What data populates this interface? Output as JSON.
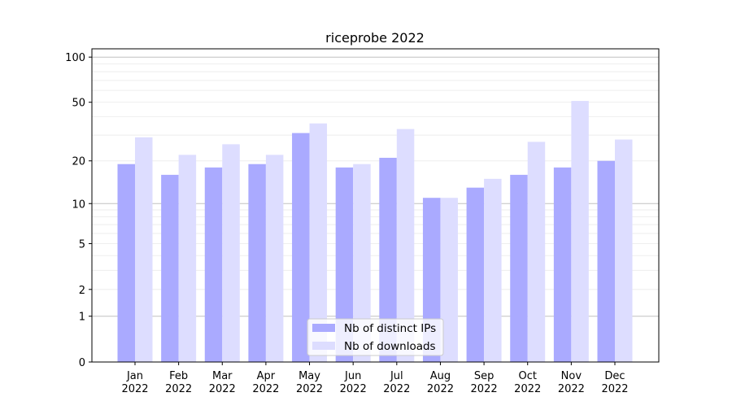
{
  "chart_data": {
    "type": "bar",
    "title": "riceprobe 2022",
    "xlabel": "",
    "ylabel": "",
    "yscale": "log10(y+1)",
    "ylim": [
      0,
      113
    ],
    "grid": true,
    "legend_position": "bottom-center",
    "categories": [
      "Jan\n2022",
      "Feb\n2022",
      "Mar\n2022",
      "Apr\n2022",
      "May\n2022",
      "Jun\n2022",
      "Jul\n2022",
      "Aug\n2022",
      "Sep\n2022",
      "Oct\n2022",
      "Nov\n2022",
      "Dec\n2022"
    ],
    "yticks": [
      0,
      1,
      2,
      5,
      10,
      20,
      50,
      100
    ],
    "series": [
      {
        "name": "Nb of distinct IPs",
        "color": "#aaaaff",
        "values": [
          19,
          16,
          18,
          19,
          31,
          18,
          21,
          11,
          13,
          16,
          18,
          20
        ]
      },
      {
        "name": "Nb of downloads",
        "color": "#ddddff",
        "values": [
          29,
          22,
          26,
          22,
          36,
          19,
          33,
          11,
          15,
          27,
          51,
          28
        ]
      }
    ]
  }
}
